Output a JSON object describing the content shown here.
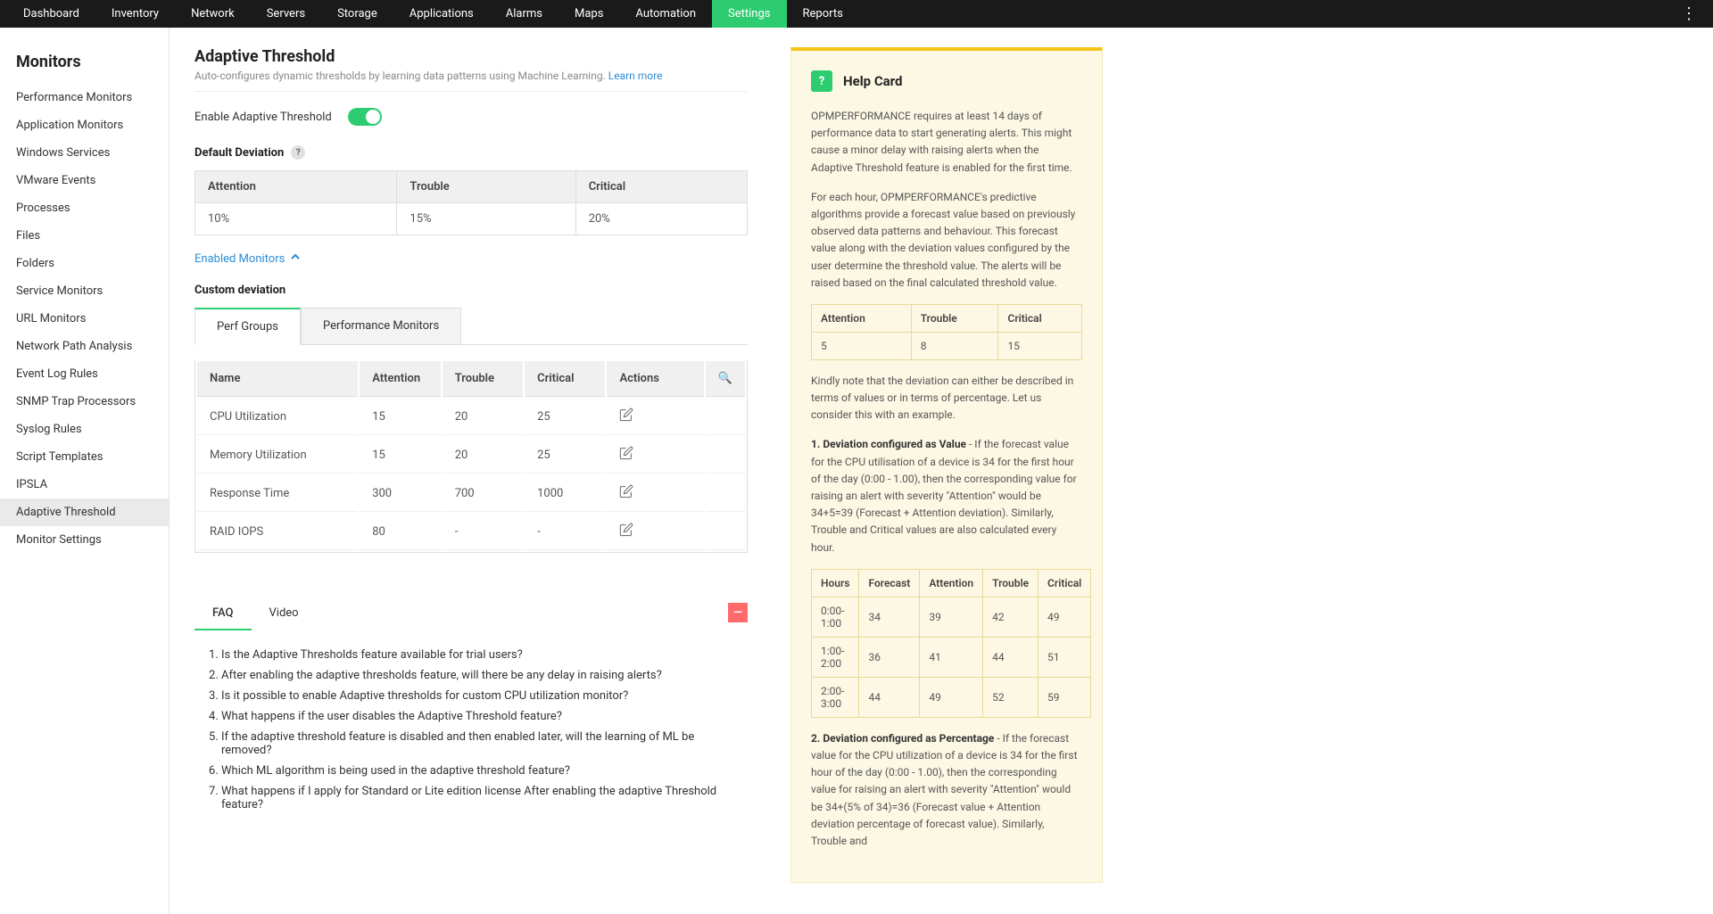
{
  "topnav": {
    "items": [
      "Dashboard",
      "Inventory",
      "Network",
      "Servers",
      "Storage",
      "Applications",
      "Alarms",
      "Maps",
      "Automation",
      "Settings",
      "Reports"
    ],
    "active_index": 9
  },
  "sidebar": {
    "title": "Monitors",
    "items": [
      "Performance Monitors",
      "Application Monitors",
      "Windows Services",
      "VMware Events",
      "Processes",
      "Files",
      "Folders",
      "Service Monitors",
      "URL Monitors",
      "Network Path Analysis",
      "Event Log Rules",
      "SNMP Trap Processors",
      "Syslog Rules",
      "Script Templates",
      "IPSLA",
      "Adaptive Threshold",
      "Monitor Settings"
    ],
    "active_index": 15
  },
  "page": {
    "title": "Adaptive Threshold",
    "description": "Auto-configures dynamic thresholds by learning data patterns using Machine Learning.",
    "learn_more": "Learn more",
    "enable_label": "Enable Adaptive Threshold",
    "default_deviation_label": "Default Deviation",
    "enabled_monitors": "Enabled Monitors",
    "custom_deviation_label": "Custom deviation"
  },
  "default_deviation": {
    "headers": [
      "Attention",
      "Trouble",
      "Critical"
    ],
    "values": [
      "10%",
      "15%",
      "20%"
    ]
  },
  "cd_tabs": {
    "perf_groups": "Perf Groups",
    "perf_monitors": "Performance Monitors"
  },
  "cd_table": {
    "headers": [
      "Name",
      "Attention",
      "Trouble",
      "Critical",
      "Actions"
    ],
    "rows": [
      {
        "name": "CPU Utilization",
        "attention": "15",
        "trouble": "20",
        "critical": "25"
      },
      {
        "name": "Memory Utilization",
        "attention": "15",
        "trouble": "20",
        "critical": "25"
      },
      {
        "name": "Response Time",
        "attention": "300",
        "trouble": "700",
        "critical": "1000"
      },
      {
        "name": "RAID IOPS",
        "attention": "80",
        "trouble": "-",
        "critical": "-"
      }
    ]
  },
  "faq_tabs": {
    "faq": "FAQ",
    "video": "Video"
  },
  "faqs": [
    "Is the Adaptive Thresholds feature available for trial users?",
    "After enabling the adaptive thresholds feature, will there be any delay in raising alerts?",
    "Is it possible to enable Adaptive thresholds for custom CPU utilization monitor?",
    "What happens if the user disables the Adaptive Threshold feature?",
    "If the adaptive threshold feature is disabled and then enabled later, will the learning of ML be removed?",
    "Which ML algorithm is being used in the adaptive threshold feature?",
    "What happens if I apply for Standard or Lite edition license After enabling the adaptive Threshold feature?"
  ],
  "help": {
    "title": "Help Card",
    "p1": "OPMPERFORMANCE requires at least 14 days of performance data to start generating alerts. This might cause a minor delay with raising alerts when the Adaptive Threshold feature is enabled for the first time.",
    "p2": "For each hour, OPMPERFORMANCE's predictive algorithms provide a forecast value based on previously observed data patterns and behaviour. This forecast value along with the deviation values configured by the user determine the threshold value. The alerts will be raised based on the final calculated threshold value.",
    "t1_headers": [
      "Attention",
      "Trouble",
      "Critical"
    ],
    "t1_values": [
      "5",
      "8",
      "15"
    ],
    "p3": "Kindly note that the deviation can either be described in terms of values or in terms of percentage. Let us consider this with an example.",
    "p4_label": "1. Deviation configured as Value",
    "p4_text": " - If the forecast value for the CPU utilisation of a device is 34 for the first hour of the day (0:00 - 1.00), then the corresponding value for raising an alert with severity \"Attention\" would be 34+5=39 (Forecast + Attention deviation). Similarly, Trouble and Critical values are also calculated every hour.",
    "t2_headers": [
      "Hours",
      "Forecast",
      "Attention",
      "Trouble",
      "Critical"
    ],
    "t2_rows": [
      [
        "0:00-1:00",
        "34",
        "39",
        "42",
        "49"
      ],
      [
        "1:00-2:00",
        "36",
        "41",
        "44",
        "51"
      ],
      [
        "2:00-3:00",
        "44",
        "49",
        "52",
        "59"
      ]
    ],
    "p5_label": "2. Deviation configured as Percentage",
    "p5_text": " - If the forecast value for the CPU utilization of a device is 34 for the first hour of the day (0:00 - 1.00), then the corresponding value for raising an alert with severity \"Attention\" would be 34+(5% of 34)=36 (Forecast value + Attention deviation percentage of forecast value). Similarly, Trouble and"
  }
}
